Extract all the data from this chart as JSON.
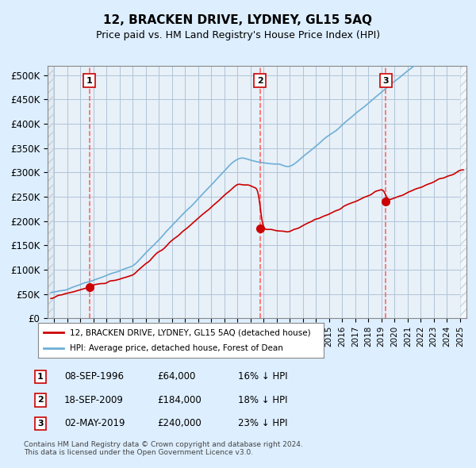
{
  "title": "12, BRACKEN DRIVE, LYDNEY, GL15 5AQ",
  "subtitle": "Price paid vs. HM Land Registry's House Price Index (HPI)",
  "ylabel": "",
  "ylim": [
    0,
    520000
  ],
  "yticks": [
    0,
    50000,
    100000,
    150000,
    200000,
    250000,
    300000,
    350000,
    400000,
    450000,
    500000
  ],
  "ytick_labels": [
    "£0",
    "£50K",
    "£100K",
    "£150K",
    "£200K",
    "£250K",
    "£300K",
    "£350K",
    "£400K",
    "£450K",
    "£500K"
  ],
  "xlim_start": 1993.5,
  "xlim_end": 2025.5,
  "hpi_color": "#6dafd6",
  "price_color": "#cc0000",
  "marker_color": "#cc0000",
  "dashed_line_color": "#ff6666",
  "sale_dates": [
    1996.69,
    2009.72,
    2019.34
  ],
  "sale_prices": [
    64000,
    184000,
    240000
  ],
  "sale_labels": [
    "1",
    "2",
    "3"
  ],
  "legend_price_label": "12, BRACKEN DRIVE, LYDNEY, GL15 5AQ (detached house)",
  "legend_hpi_label": "HPI: Average price, detached house, Forest of Dean",
  "table_entries": [
    {
      "num": "1",
      "date": "08-SEP-1996",
      "price": "£64,000",
      "pct": "16% ↓ HPI"
    },
    {
      "num": "2",
      "date": "18-SEP-2009",
      "price": "£184,000",
      "pct": "18% ↓ HPI"
    },
    {
      "num": "3",
      "date": "02-MAY-2019",
      "price": "£240,000",
      "pct": "23% ↓ HPI"
    }
  ],
  "footer": "Contains HM Land Registry data © Crown copyright and database right 2024.\nThis data is licensed under the Open Government Licence v3.0.",
  "bg_color": "#ddeeff",
  "plot_bg": "#e8f0f8",
  "hatch_color": "#c8d8e8",
  "grid_color": "#b0c4d8",
  "border_color": "#888888"
}
